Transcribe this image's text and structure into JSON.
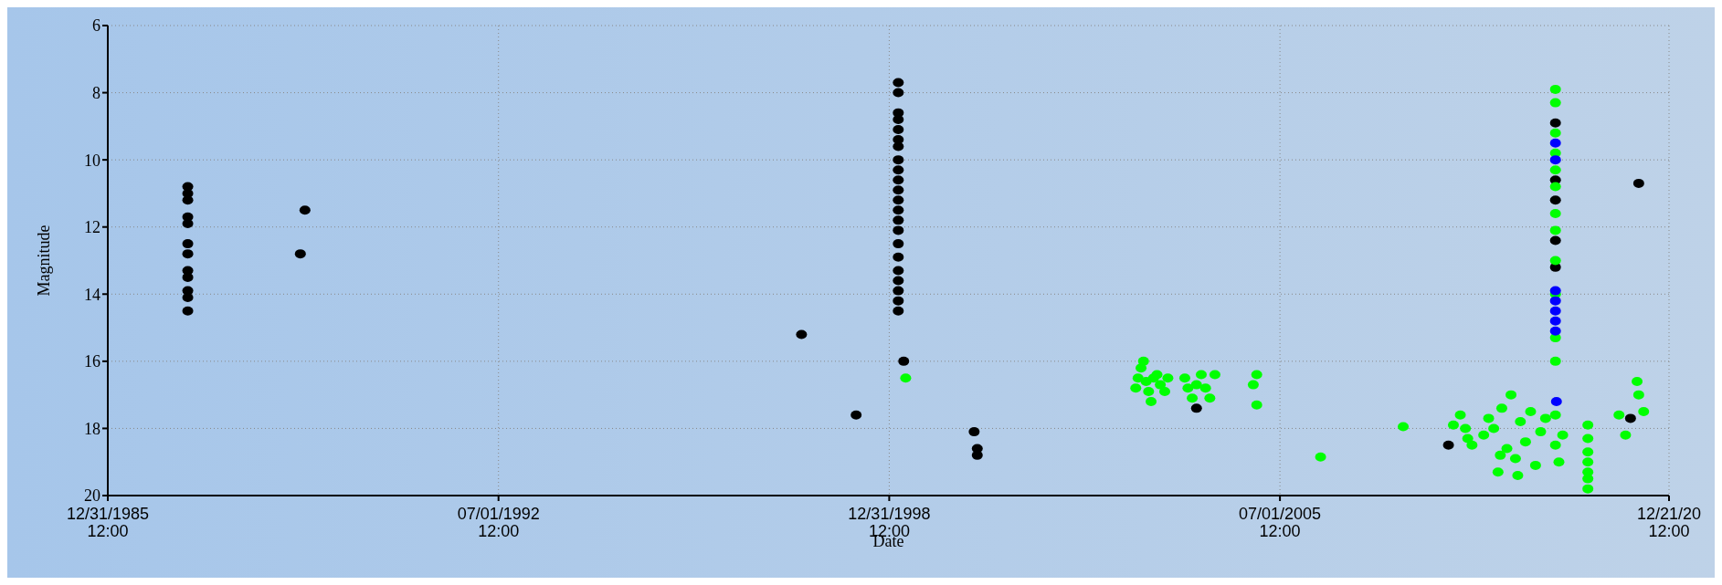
{
  "chart_data": {
    "type": "scatter",
    "xlabel": "Date",
    "ylabel": "Magnitude",
    "xlim": [
      "1985-12-31T12:00",
      "2011-12-21T12:00"
    ],
    "xticks": [
      {
        "value": "1985-12-31T12:00",
        "label": "12/31/1985\n12:00"
      },
      {
        "value": "1992-07-01T12:00",
        "label": "07/01/1992\n12:00"
      },
      {
        "value": "1998-12-31T12:00",
        "label": "12/31/1998\n12:00"
      },
      {
        "value": "2005-07-01T12:00",
        "label": "07/01/2005\n12:00"
      },
      {
        "value": "2011-12-21T12:00",
        "label": "12/21/20\n12:00"
      }
    ],
    "ylim": [
      20,
      6
    ],
    "yticks": [
      6,
      8,
      10,
      12,
      14,
      16,
      18,
      20
    ],
    "grid": true,
    "marker": "circle",
    "series": [
      {
        "color": "#000000",
        "x": [
          "1987-05-01",
          "1987-05-01",
          "1987-05-01",
          "1987-05-01",
          "1987-05-01",
          "1987-05-01",
          "1987-05-01",
          "1987-05-01",
          "1987-05-01",
          "1987-05-01",
          "1987-05-01",
          "1987-05-01",
          "1989-03-15",
          "1989-04-12",
          "1997-07-16",
          "1998-06-13",
          "1999-02-24",
          "1999-02-24",
          "1999-02-24",
          "1999-02-24",
          "1999-02-24",
          "1999-02-24",
          "1999-02-24",
          "1999-02-24",
          "1999-02-24",
          "1999-02-24",
          "1999-02-24",
          "1999-02-24",
          "1999-02-24",
          "1999-02-24",
          "1999-02-24",
          "1999-02-24",
          "1999-02-24",
          "1999-02-24",
          "1999-02-24",
          "1999-02-24",
          "1999-02-24",
          "1999-02-24",
          "1999-03-29",
          "2000-05-30",
          "2000-06-18",
          "2000-06-18",
          "2004-02-10",
          "2008-04-20",
          "2010-01-30",
          "2010-01-30",
          "2010-01-30",
          "2010-01-30",
          "2010-01-30",
          "2011-05-01",
          "2011-06-20"
        ],
        "values": [
          10.8,
          11.0,
          11.2,
          11.7,
          11.9,
          12.5,
          12.8,
          13.3,
          13.5,
          13.9,
          14.1,
          14.5,
          12.8,
          11.5,
          15.2,
          17.6,
          7.7,
          8.0,
          8.6,
          8.8,
          9.1,
          9.4,
          9.6,
          10.0,
          10.3,
          10.6,
          10.9,
          11.2,
          11.5,
          11.8,
          12.1,
          12.5,
          12.9,
          13.3,
          13.6,
          13.9,
          14.2,
          14.5,
          16.0,
          18.1,
          18.6,
          18.8,
          17.4,
          18.5,
          8.9,
          10.6,
          11.2,
          12.4,
          13.2,
          17.7,
          10.7
        ]
      },
      {
        "color": "#00ff00",
        "x": [
          "1999-04-10",
          "2003-02-06",
          "2003-02-20",
          "2003-03-10",
          "2003-03-25",
          "2003-04-10",
          "2003-04-25",
          "2003-05-10",
          "2003-05-25",
          "2003-06-15",
          "2003-07-05",
          "2003-08-01",
          "2003-08-20",
          "2003-12-01",
          "2003-12-20",
          "2004-01-15",
          "2004-02-10",
          "2004-03-10",
          "2004-04-05",
          "2004-05-01",
          "2004-06-01",
          "2005-01-20",
          "2005-02-10",
          "2005-02-10",
          "2006-03-05",
          "2007-07-20",
          "2008-05-20",
          "2008-07-01",
          "2008-08-01",
          "2008-08-15",
          "2008-09-10",
          "2008-11-20",
          "2008-12-20",
          "2009-01-20",
          "2009-02-15",
          "2009-03-10",
          "2009-04-10",
          "2009-05-05",
          "2009-06-01",
          "2009-07-01",
          "2009-08-01",
          "2009-09-01",
          "2009-10-01",
          "2009-11-01",
          "2009-12-01",
          "2009-03-01",
          "2009-06-15",
          "2010-01-30",
          "2010-01-30",
          "2010-01-30",
          "2010-01-30",
          "2010-01-30",
          "2010-01-30",
          "2010-01-30",
          "2010-01-30",
          "2010-01-30",
          "2010-01-30",
          "2010-01-30",
          "2010-01-30",
          "2010-01-30",
          "2010-01-30",
          "2010-02-20",
          "2010-03-15",
          "2010-08-15",
          "2010-08-15",
          "2010-08-15",
          "2010-08-15",
          "2010-08-15",
          "2010-08-15",
          "2010-08-15",
          "2011-02-20",
          "2011-04-01",
          "2011-06-10",
          "2011-06-20",
          "2011-07-20"
        ],
        "values": [
          16.5,
          16.8,
          16.5,
          16.2,
          16.0,
          16.6,
          16.9,
          17.2,
          16.5,
          16.4,
          16.7,
          16.9,
          16.5,
          16.5,
          16.8,
          17.1,
          16.7,
          16.4,
          16.8,
          17.1,
          16.4,
          16.7,
          16.4,
          17.3,
          18.85,
          17.95,
          17.9,
          17.6,
          18.0,
          18.3,
          18.5,
          18.2,
          17.7,
          18.0,
          19.3,
          17.4,
          18.6,
          17.0,
          18.9,
          17.8,
          18.4,
          17.5,
          19.1,
          18.1,
          17.7,
          18.8,
          19.4,
          7.9,
          8.3,
          9.2,
          9.8,
          10.3,
          10.8,
          11.6,
          12.1,
          13.0,
          14.0,
          15.3,
          16.0,
          17.6,
          18.5,
          19.0,
          18.2,
          17.9,
          18.3,
          18.7,
          19.0,
          19.3,
          19.5,
          19.8,
          17.6,
          18.2,
          16.6,
          17.0,
          17.5
        ]
      },
      {
        "color": "#0000ff",
        "x": [
          "2010-01-30",
          "2010-01-30",
          "2010-01-30",
          "2010-01-30",
          "2010-01-30",
          "2010-01-30",
          "2010-01-30",
          "2010-02-05"
        ],
        "values": [
          9.5,
          10.0,
          13.9,
          14.2,
          14.5,
          14.8,
          15.1,
          17.2
        ]
      }
    ]
  }
}
